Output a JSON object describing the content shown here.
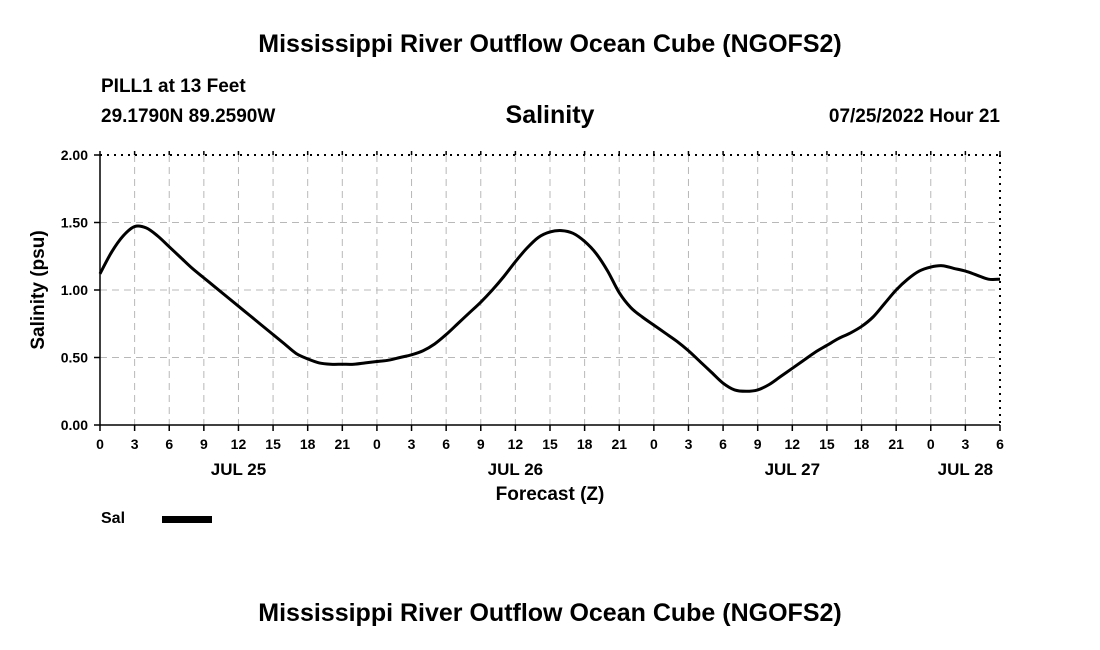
{
  "page": {
    "title": "Mississippi River Outflow Ocean Cube (NGOFS2)",
    "station": "PILL1 at 13 Feet",
    "coords": "29.1790N  89.2590W",
    "subtitle": "Salinity",
    "datetime": "07/25/2022 Hour 21",
    "footer_title": "Mississippi River Outflow Ocean Cube (NGOFS2)"
  },
  "chart_data": {
    "type": "line",
    "title": "Salinity",
    "xlabel": "Forecast (Z)",
    "ylabel": "Salinity (psu)",
    "ylim": [
      0,
      2
    ],
    "yticks": [
      "0.00",
      "0.50",
      "1.00",
      "1.50",
      "2.00"
    ],
    "xlim_hours": [
      0,
      78
    ],
    "xtick_hours": [
      0,
      3,
      6,
      9,
      12,
      15,
      18,
      21,
      24,
      27,
      30,
      33,
      36,
      39,
      42,
      45,
      48,
      51,
      54,
      57,
      60,
      63,
      66,
      69,
      72,
      75,
      78
    ],
    "xtick_labels": [
      "0",
      "3",
      "6",
      "9",
      "12",
      "15",
      "18",
      "21",
      "0",
      "3",
      "6",
      "9",
      "12",
      "15",
      "18",
      "21",
      "0",
      "3",
      "6",
      "9",
      "12",
      "15",
      "18",
      "21",
      "0",
      "3",
      "6"
    ],
    "day_labels": [
      {
        "label": "JUL 25",
        "hour": 12
      },
      {
        "label": "JUL 26",
        "hour": 36
      },
      {
        "label": "JUL 27",
        "hour": 60
      },
      {
        "label": "JUL 28",
        "hour": 75
      }
    ],
    "grid": true,
    "legend_placement": "bottom-left",
    "series": [
      {
        "name": "Sal",
        "color": "#000000",
        "x": [
          0,
          1,
          2,
          3,
          4,
          5,
          6,
          7,
          8,
          9,
          10,
          11,
          12,
          13,
          14,
          15,
          16,
          17,
          18,
          19,
          20,
          21,
          22,
          23,
          24,
          25,
          26,
          27,
          28,
          29,
          30,
          31,
          32,
          33,
          34,
          35,
          36,
          37,
          38,
          39,
          40,
          41,
          42,
          43,
          44,
          45,
          46,
          47,
          48,
          49,
          50,
          51,
          52,
          53,
          54,
          55,
          56,
          57,
          58,
          59,
          60,
          61,
          62,
          63,
          64,
          65,
          66,
          67,
          68,
          69,
          70,
          71,
          72,
          73,
          74,
          75,
          76,
          77,
          78
        ],
        "y": [
          1.12,
          1.28,
          1.4,
          1.47,
          1.46,
          1.4,
          1.32,
          1.24,
          1.16,
          1.09,
          1.02,
          0.95,
          0.88,
          0.81,
          0.74,
          0.67,
          0.6,
          0.53,
          0.49,
          0.46,
          0.45,
          0.45,
          0.45,
          0.46,
          0.47,
          0.48,
          0.5,
          0.52,
          0.55,
          0.6,
          0.67,
          0.75,
          0.83,
          0.91,
          1.0,
          1.1,
          1.21,
          1.31,
          1.39,
          1.43,
          1.44,
          1.42,
          1.36,
          1.27,
          1.14,
          0.98,
          0.87,
          0.8,
          0.74,
          0.68,
          0.62,
          0.55,
          0.47,
          0.39,
          0.31,
          0.26,
          0.25,
          0.26,
          0.3,
          0.36,
          0.42,
          0.48,
          0.54,
          0.59,
          0.64,
          0.68,
          0.73,
          0.8,
          0.9,
          1.0,
          1.08,
          1.14,
          1.17,
          1.18,
          1.16,
          1.14,
          1.11,
          1.08,
          1.08
        ]
      }
    ]
  },
  "legend": {
    "label": "Sal"
  }
}
